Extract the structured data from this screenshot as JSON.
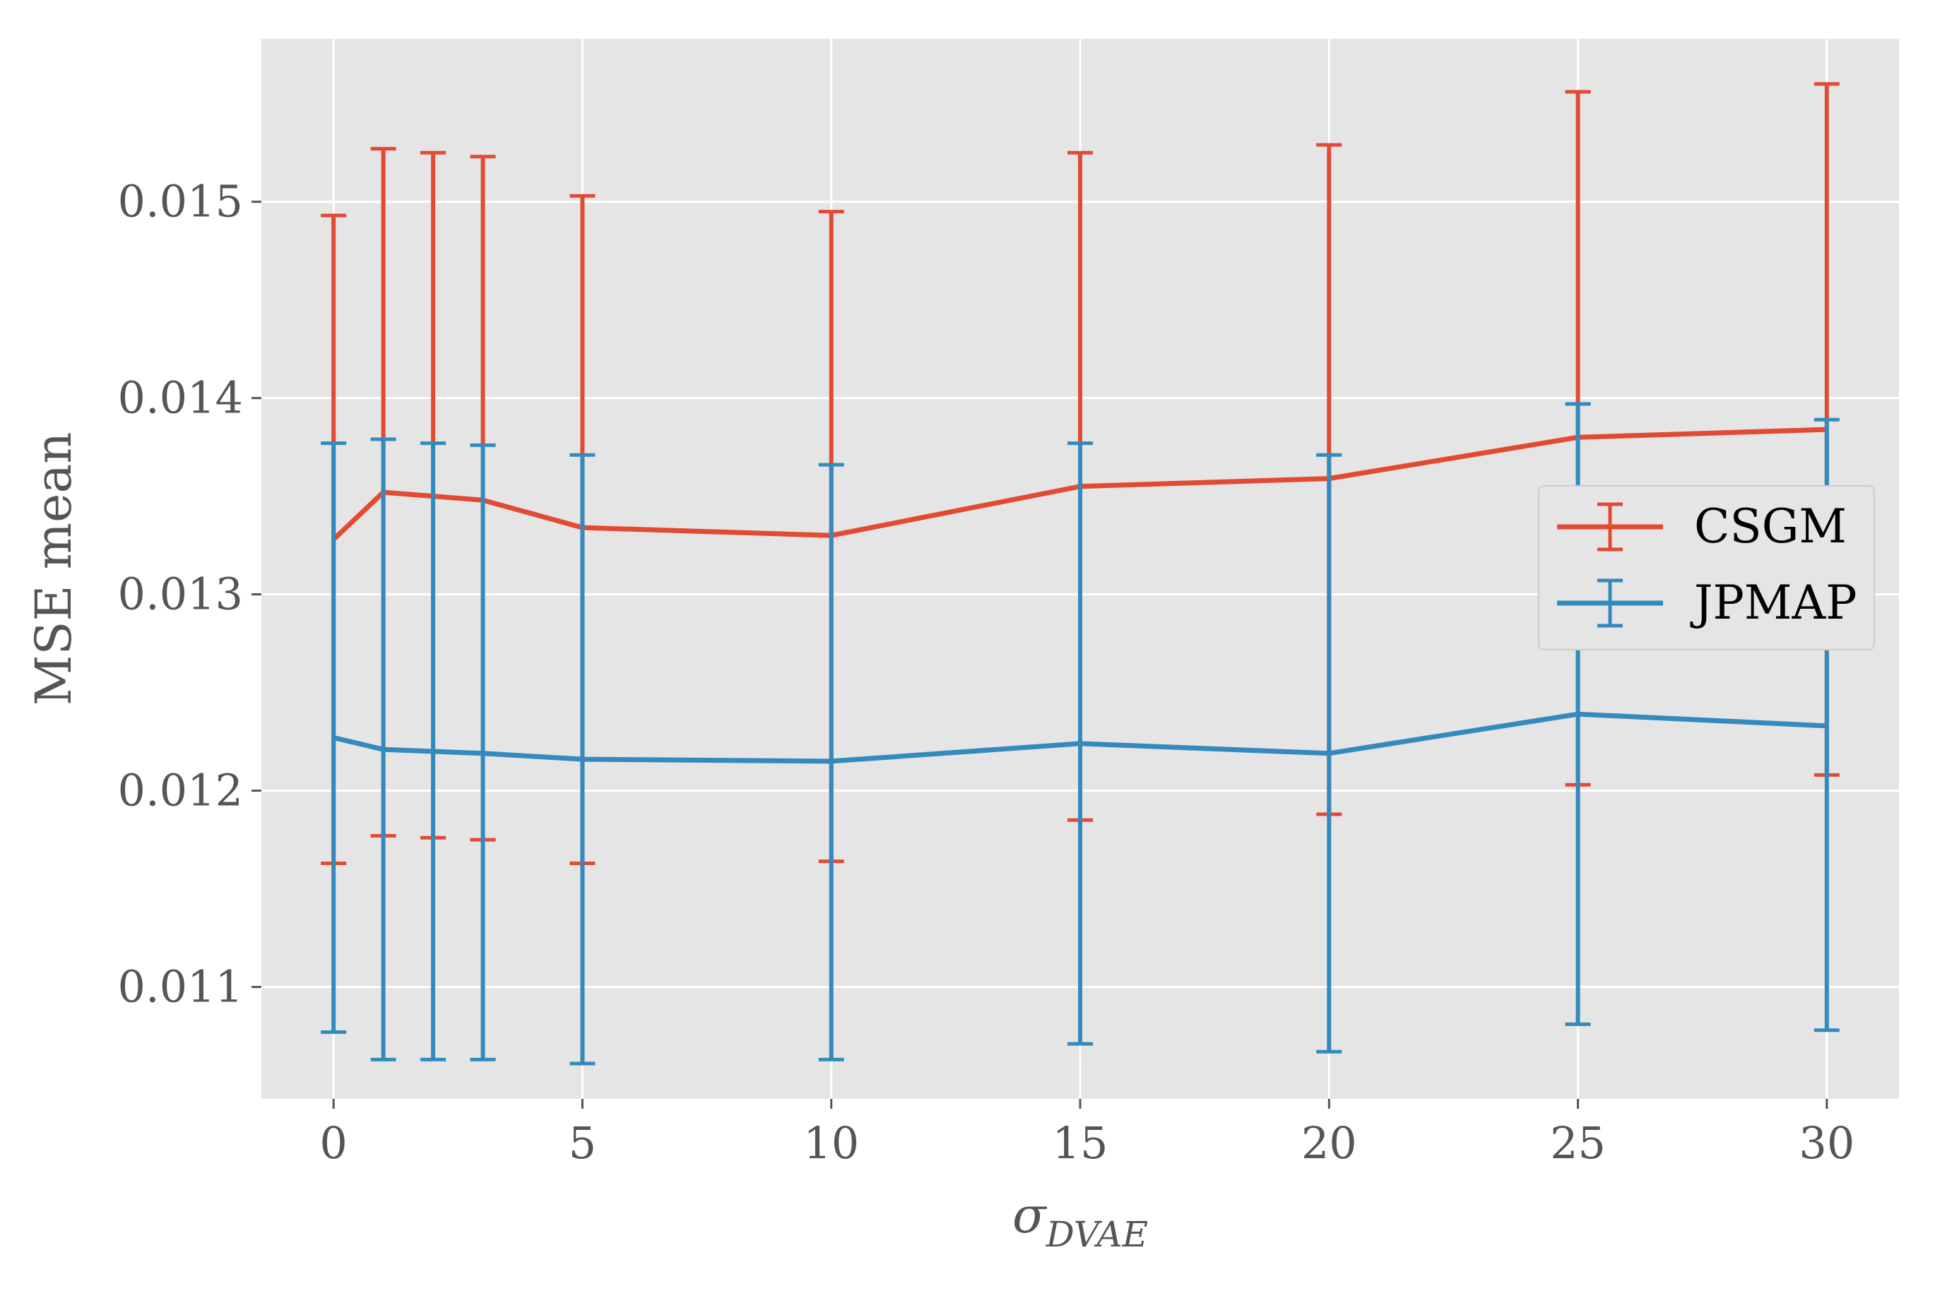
{
  "chart_data": {
    "type": "line",
    "x": [
      0,
      1,
      2,
      3,
      5,
      10,
      15,
      20,
      25,
      30
    ],
    "x_ticks": [
      0,
      5,
      10,
      15,
      20,
      25,
      30
    ],
    "x_tick_labels": [
      "0",
      "5",
      "10",
      "15",
      "20",
      "25",
      "30"
    ],
    "xlim": [
      -1.45,
      31.45
    ],
    "xlabel_symbol": "σ",
    "xlabel_subscript": "DVAE",
    "ylabel": "MSE mean",
    "y_ticks": [
      0.011,
      0.012,
      0.013,
      0.014,
      0.015
    ],
    "y_tick_labels": [
      "0.011",
      "0.012",
      "0.013",
      "0.014",
      "0.015"
    ],
    "ylim": [
      0.01043,
      0.01583
    ],
    "grid": true,
    "legend_position": "right",
    "series": [
      {
        "name": "CSGM",
        "color": "#E24A33",
        "values": [
          0.01328,
          0.01352,
          0.0135,
          0.01348,
          0.01334,
          0.0133,
          0.01355,
          0.01359,
          0.0138,
          0.01384
        ],
        "err_low": [
          0.01163,
          0.01177,
          0.01176,
          0.01175,
          0.01163,
          0.01164,
          0.01185,
          0.01188,
          0.01203,
          0.01208
        ],
        "err_high": [
          0.01493,
          0.01527,
          0.01525,
          0.01523,
          0.01503,
          0.01495,
          0.01525,
          0.01529,
          0.01556,
          0.0156
        ]
      },
      {
        "name": "JPMAP",
        "color": "#348ABD",
        "values": [
          0.01227,
          0.01221,
          0.0122,
          0.01219,
          0.01216,
          0.01215,
          0.01224,
          0.01219,
          0.01239,
          0.01233
        ],
        "err_low": [
          0.01077,
          0.01063,
          0.01063,
          0.01063,
          0.01061,
          0.01063,
          0.01071,
          0.01067,
          0.01081,
          0.01078
        ],
        "err_high": [
          0.01377,
          0.01379,
          0.01377,
          0.01376,
          0.01371,
          0.01366,
          0.01377,
          0.01371,
          0.01397,
          0.01389
        ]
      }
    ]
  }
}
